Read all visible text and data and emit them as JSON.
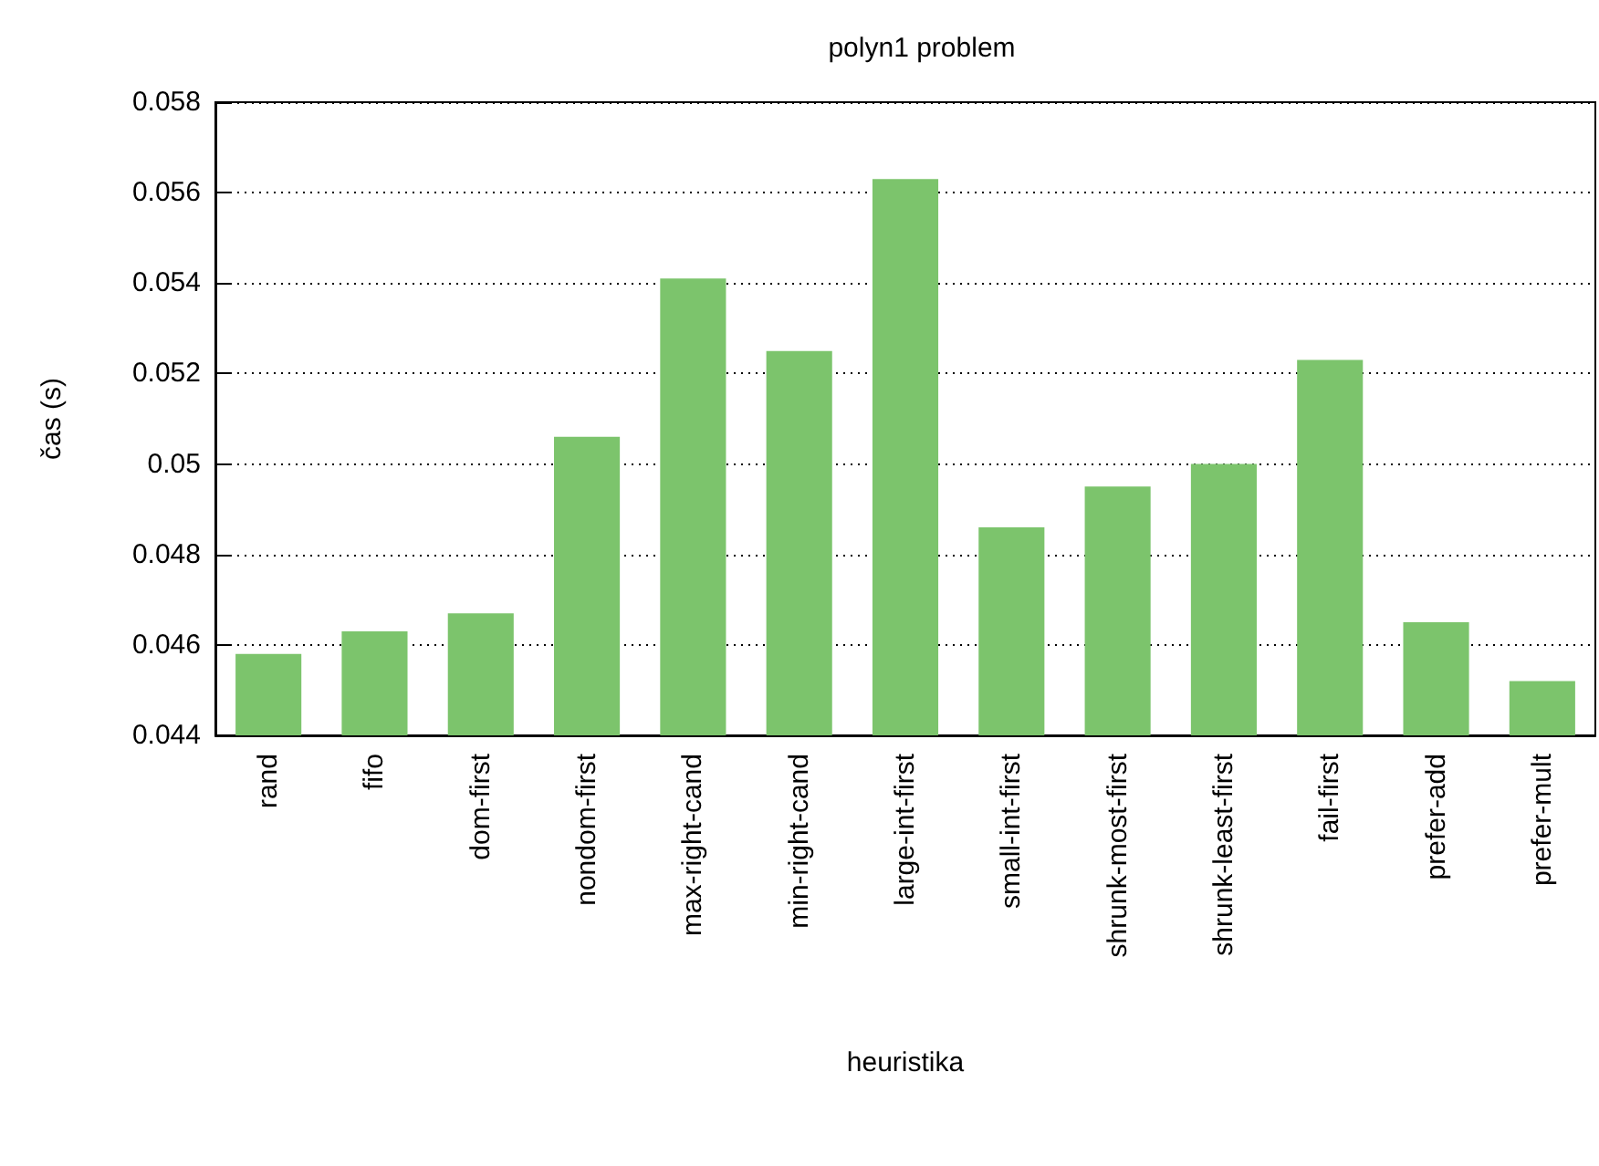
{
  "chart_data": {
    "type": "bar",
    "title": "polyn1 problem",
    "xlabel": "heuristika",
    "ylabel": "čas (s)",
    "categories": [
      "rand",
      "fifo",
      "dom-first",
      "nondom-first",
      "max-right-cand",
      "min-right-cand",
      "large-int-first",
      "small-int-first",
      "shrunk-most-first",
      "shrunk-least-first",
      "fail-first",
      "prefer-add",
      "prefer-mult"
    ],
    "values": [
      0.0458,
      0.0463,
      0.0467,
      0.0506,
      0.0541,
      0.0525,
      0.0563,
      0.0486,
      0.0495,
      0.05,
      0.0523,
      0.0465,
      0.0452
    ],
    "color": "#7cc46c",
    "ylim": [
      0.044,
      0.058
    ],
    "yticks": [
      0.044,
      0.046,
      0.048,
      0.05,
      0.052,
      0.054,
      0.056,
      0.058
    ],
    "grid": "y"
  }
}
